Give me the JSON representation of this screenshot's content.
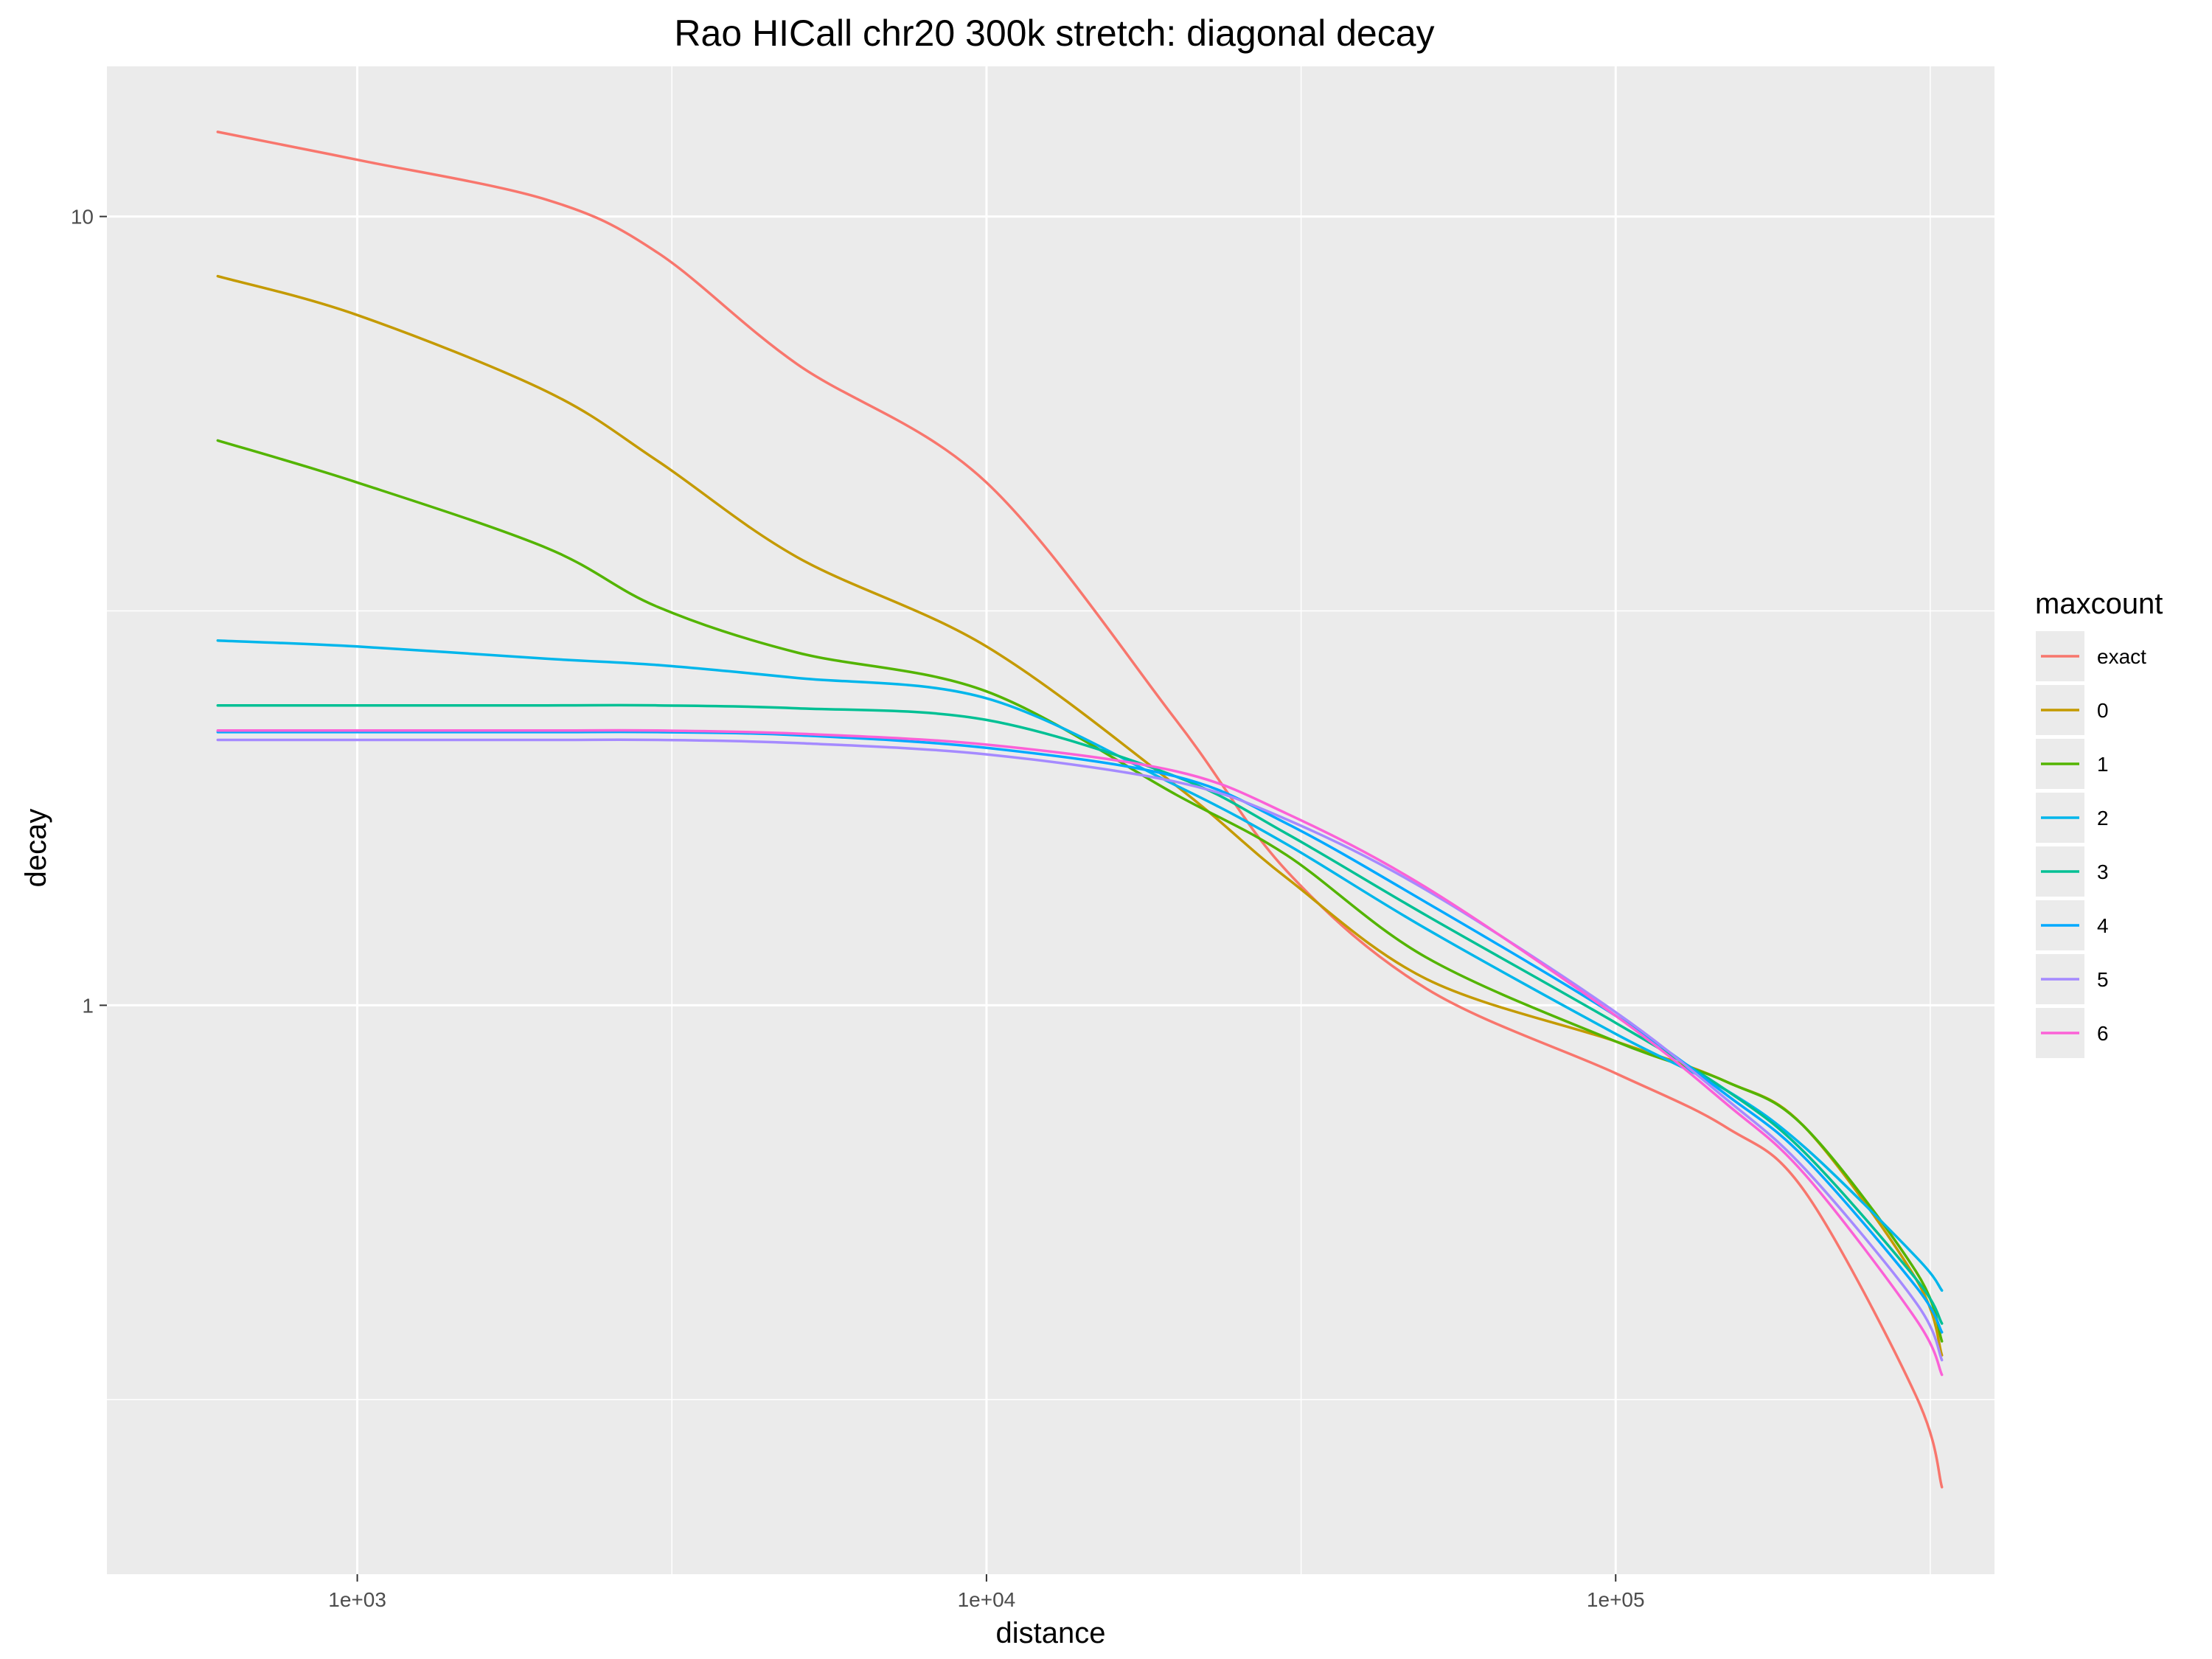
{
  "chart_data": {
    "type": "line",
    "title": "Rao HICall chr20 300k stretch: diagonal decay",
    "xlabel": "distance",
    "ylabel": "decay",
    "x_scale": "log10",
    "y_scale": "log10",
    "xlim": [
      400,
      400000
    ],
    "ylim": [
      0.19,
      15.5
    ],
    "x_ticks": [
      {
        "value": 1000,
        "label": "1e+03"
      },
      {
        "value": 10000,
        "label": "1e+04"
      },
      {
        "value": 100000,
        "label": "1e+05"
      }
    ],
    "y_ticks": [
      {
        "value": 1,
        "label": "1"
      },
      {
        "value": 10,
        "label": "10"
      }
    ],
    "grid": true,
    "legend": {
      "title": "maxcount",
      "position": "right"
    },
    "x": [
      600,
      1000,
      2000,
      3000,
      5000,
      10000,
      20000,
      30000,
      50000,
      100000,
      150000,
      200000,
      300000,
      330000
    ],
    "series": [
      {
        "name": "exact",
        "color": "#F8766D",
        "values": [
          12.8,
          11.8,
          10.5,
          9.0,
          6.5,
          4.6,
          2.3,
          1.48,
          1.05,
          0.82,
          0.7,
          0.58,
          0.32,
          0.245
        ]
      },
      {
        "name": "0",
        "color": "#C49A00",
        "values": [
          8.4,
          7.5,
          6.0,
          4.9,
          3.7,
          2.85,
          1.9,
          1.45,
          1.08,
          0.9,
          0.8,
          0.7,
          0.45,
          0.36
        ]
      },
      {
        "name": "1",
        "color": "#53B400",
        "values": [
          5.2,
          4.6,
          3.8,
          3.2,
          2.8,
          2.5,
          1.85,
          1.55,
          1.15,
          0.9,
          0.8,
          0.7,
          0.46,
          0.375
        ]
      },
      {
        "name": "2",
        "color": "#00B6EB",
        "values": [
          2.9,
          2.85,
          2.75,
          2.7,
          2.6,
          2.45,
          1.9,
          1.6,
          1.25,
          0.92,
          0.78,
          0.66,
          0.48,
          0.435
        ]
      },
      {
        "name": "3",
        "color": "#00C094",
        "values": [
          2.4,
          2.4,
          2.4,
          2.4,
          2.38,
          2.3,
          1.95,
          1.65,
          1.3,
          0.95,
          0.78,
          0.65,
          0.45,
          0.395
        ]
      },
      {
        "name": "4",
        "color": "#00A9FF",
        "values": [
          2.22,
          2.22,
          2.22,
          2.22,
          2.2,
          2.12,
          1.95,
          1.7,
          1.35,
          0.97,
          0.77,
          0.64,
          0.44,
          0.385
        ]
      },
      {
        "name": "5",
        "color": "#A58AFF",
        "values": [
          2.17,
          2.17,
          2.17,
          2.17,
          2.15,
          2.08,
          1.92,
          1.72,
          1.4,
          0.98,
          0.76,
          0.62,
          0.42,
          0.355
        ]
      },
      {
        "name": "6",
        "color": "#FB61D7",
        "values": [
          2.23,
          2.23,
          2.23,
          2.23,
          2.21,
          2.14,
          1.98,
          1.75,
          1.41,
          0.97,
          0.75,
          0.61,
          0.4,
          0.34
        ]
      }
    ]
  }
}
